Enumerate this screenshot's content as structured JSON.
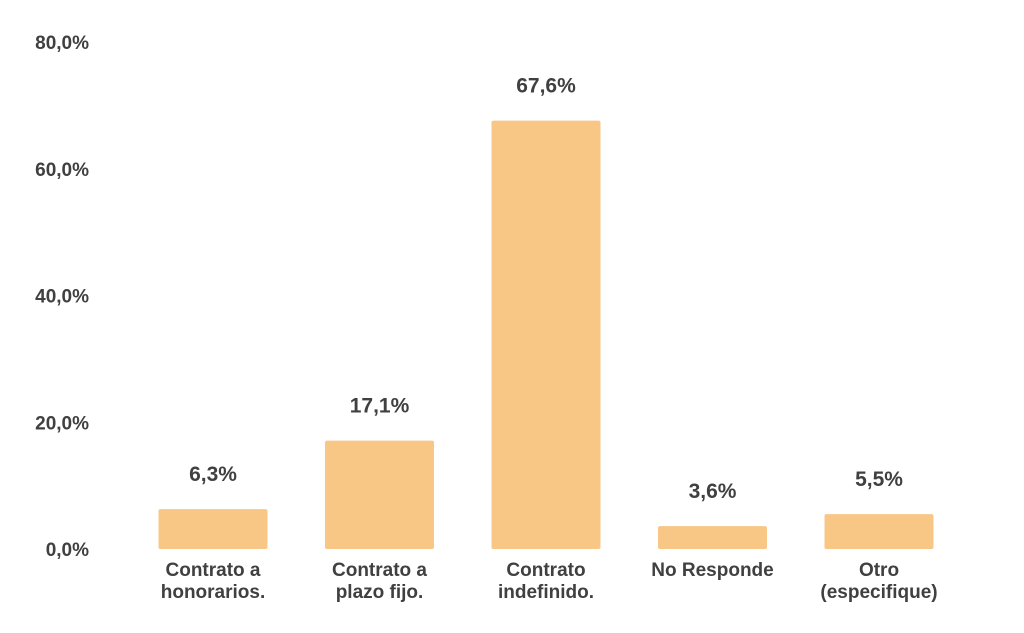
{
  "chart_data": {
    "type": "bar",
    "title": "",
    "xlabel": "",
    "ylabel": "",
    "ylim": [
      0,
      80
    ],
    "yticks": [
      0,
      20,
      40,
      60,
      80
    ],
    "ytick_labels": [
      "0,0%",
      "20,0%",
      "40,0%",
      "60,0%",
      "80,0%"
    ],
    "grid": false,
    "legend": "none",
    "bar_color": "#F8C785",
    "text_color": "#404040",
    "categories": [
      [
        "Contrato a",
        "honorarios."
      ],
      [
        "Contrato a",
        "plazo fijo."
      ],
      [
        "Contrato",
        "indefinido."
      ],
      [
        "No Responde"
      ],
      [
        "Otro",
        "(especifique)"
      ]
    ],
    "values": [
      6.3,
      17.1,
      67.6,
      3.6,
      5.5
    ],
    "value_labels": [
      "6,3%",
      "17,1%",
      "67,6%",
      "3,6%",
      "5,5%"
    ]
  }
}
